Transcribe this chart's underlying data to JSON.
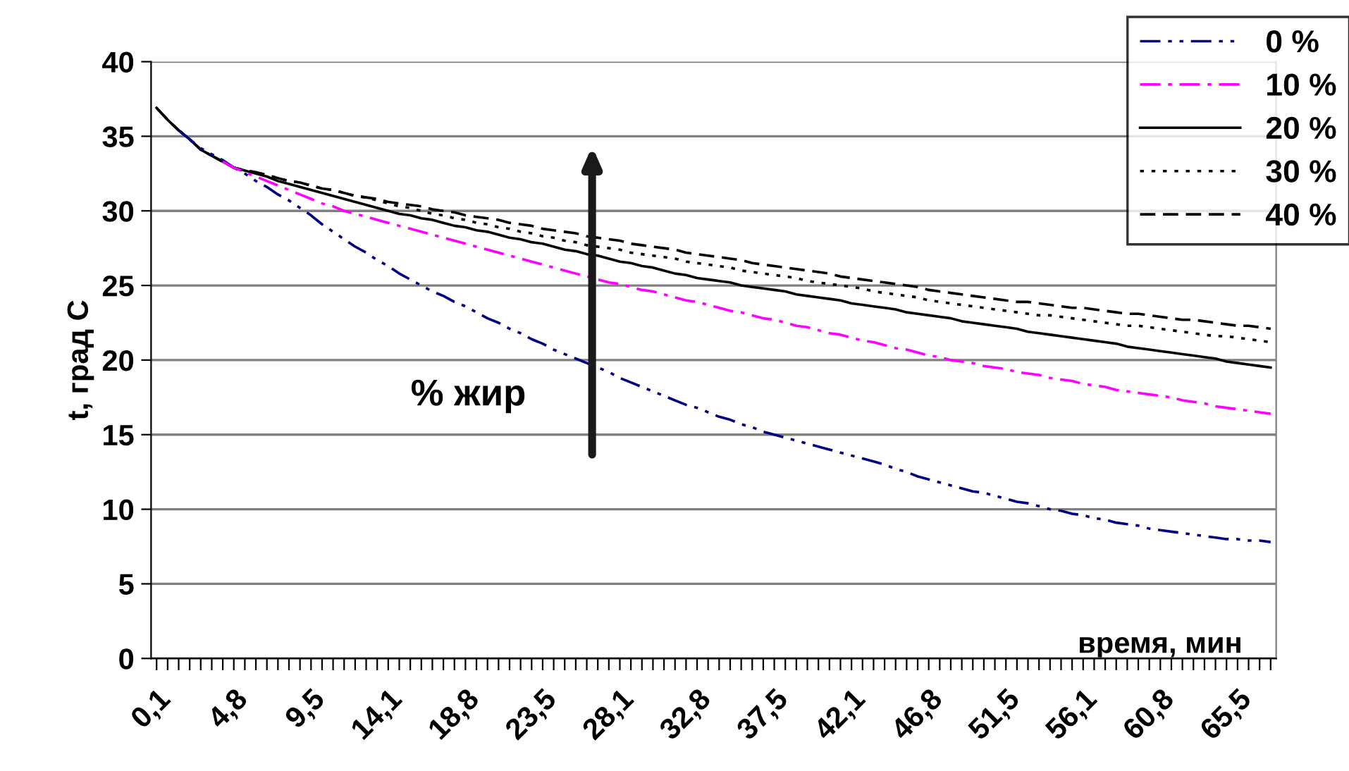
{
  "chart_data": {
    "type": "line",
    "ylabel": "t, град С",
    "xlabel": "время, мин",
    "annotations": [
      "% жир"
    ],
    "categories": [
      "0,1",
      null,
      null,
      null,
      null,
      null,
      null,
      "4,8",
      null,
      null,
      null,
      null,
      null,
      null,
      "9,5",
      null,
      null,
      null,
      null,
      null,
      null,
      "14,1",
      null,
      null,
      null,
      null,
      null,
      null,
      "18,8",
      null,
      null,
      null,
      null,
      null,
      null,
      "23,5",
      null,
      null,
      null,
      null,
      null,
      null,
      "28,1",
      null,
      null,
      null,
      null,
      null,
      null,
      "32,8",
      null,
      null,
      null,
      null,
      null,
      null,
      "37,5",
      null,
      null,
      null,
      null,
      null,
      null,
      "42,1",
      null,
      null,
      null,
      null,
      null,
      null,
      "46,8",
      null,
      null,
      null,
      null,
      null,
      null,
      "51,5",
      null,
      null,
      null,
      null,
      null,
      null,
      "56,1",
      null,
      null,
      null,
      null,
      null,
      null,
      "60,8",
      null,
      null,
      null,
      null,
      null,
      null,
      "65,5",
      null,
      null,
      null
    ],
    "ylim": [
      0,
      40
    ],
    "yticks": [
      0,
      5,
      10,
      15,
      20,
      25,
      30,
      35,
      40
    ],
    "grid": "y",
    "legend": "top right",
    "marker": "none",
    "series": [
      {
        "name": "0 %",
        "color": "#000080",
        "line_style": "dashdotdot",
        "values": [
          null,
          null,
          35.4,
          34.8,
          34.2,
          33.8,
          33.4,
          32.9,
          32.5,
          32.0,
          31.6,
          31.1,
          30.7,
          30.2,
          29.7,
          29.1,
          28.6,
          28.1,
          27.6,
          27.2,
          26.7,
          26.3,
          25.8,
          25.4,
          25.0,
          24.6,
          24.3,
          23.9,
          23.6,
          23.2,
          22.8,
          22.5,
          22.1,
          21.8,
          21.4,
          21.1,
          20.7,
          20.4,
          20.1,
          19.8,
          19.5,
          19.2,
          18.8,
          18.5,
          18.2,
          17.9,
          17.6,
          17.3,
          17.0,
          16.8,
          16.5,
          16.2,
          16.0,
          15.7,
          15.5,
          15.2,
          15.0,
          14.8,
          14.6,
          14.4,
          14.2,
          14.0,
          13.8,
          13.6,
          13.4,
          13.2,
          13.0,
          12.7,
          12.5,
          12.2,
          12.0,
          11.8,
          11.6,
          11.4,
          11.2,
          11.1,
          10.9,
          10.7,
          10.5,
          10.4,
          10.2,
          10.0,
          9.9,
          9.7,
          9.6,
          9.4,
          9.3,
          9.1,
          9.0,
          8.9,
          8.7,
          8.6,
          8.5,
          8.4,
          8.3,
          8.2,
          8.1,
          8.0,
          8.0,
          7.9,
          7.9,
          7.8
        ]
      },
      {
        "name": "10 %",
        "color": "#ff00ff",
        "line_style": "dashdot",
        "values": [
          null,
          null,
          null,
          null,
          null,
          null,
          33.3,
          32.9,
          32.6,
          32.3,
          32.0,
          31.7,
          31.4,
          31.1,
          30.8,
          30.5,
          30.3,
          30.0,
          29.8,
          29.6,
          29.4,
          29.2,
          29.0,
          28.8,
          28.6,
          28.4,
          28.2,
          28.0,
          27.8,
          27.6,
          27.4,
          27.2,
          27.0,
          26.8,
          26.6,
          26.4,
          26.2,
          26.0,
          25.8,
          25.6,
          25.4,
          25.2,
          25.1,
          24.9,
          24.7,
          24.6,
          24.4,
          24.2,
          24.0,
          23.9,
          23.7,
          23.5,
          23.3,
          23.2,
          23.0,
          22.8,
          22.7,
          22.5,
          22.3,
          22.2,
          22.0,
          21.8,
          21.7,
          21.5,
          21.3,
          21.2,
          21.0,
          20.8,
          20.7,
          20.5,
          20.3,
          20.2,
          20.0,
          19.9,
          19.8,
          19.6,
          19.5,
          19.4,
          19.2,
          19.1,
          19.0,
          18.8,
          18.7,
          18.6,
          18.4,
          18.3,
          18.2,
          18.0,
          17.9,
          17.8,
          17.7,
          17.6,
          17.5,
          17.3,
          17.2,
          17.1,
          16.9,
          16.8,
          16.7,
          16.6,
          16.5,
          16.4
        ]
      },
      {
        "name": "20 %",
        "color": "#000000",
        "line_style": "solid",
        "values": [
          36.9,
          36.1,
          35.4,
          34.8,
          34.1,
          33.7,
          33.3,
          32.9,
          32.7,
          32.5,
          32.3,
          32.0,
          31.8,
          31.6,
          31.4,
          31.2,
          31.0,
          30.8,
          30.6,
          30.4,
          30.2,
          30.0,
          29.8,
          29.7,
          29.5,
          29.4,
          29.2,
          29.0,
          28.9,
          28.7,
          28.6,
          28.4,
          28.2,
          28.1,
          27.9,
          27.8,
          27.6,
          27.4,
          27.3,
          27.1,
          27.0,
          26.8,
          26.6,
          26.5,
          26.3,
          26.2,
          26.0,
          25.8,
          25.7,
          25.5,
          25.4,
          25.3,
          25.2,
          25.0,
          24.9,
          24.8,
          24.7,
          24.6,
          24.4,
          24.3,
          24.2,
          24.1,
          24.0,
          23.8,
          23.7,
          23.6,
          23.5,
          23.4,
          23.2,
          23.1,
          23.0,
          22.9,
          22.8,
          22.6,
          22.5,
          22.4,
          22.3,
          22.2,
          22.1,
          21.9,
          21.8,
          21.7,
          21.6,
          21.5,
          21.4,
          21.3,
          21.2,
          21.1,
          20.9,
          20.8,
          20.7,
          20.6,
          20.5,
          20.4,
          20.3,
          20.2,
          20.1,
          19.9,
          19.8,
          19.7,
          19.6,
          19.5
        ]
      },
      {
        "name": "30 %",
        "color": "#000000",
        "line_style": "dotted",
        "values": [
          36.9,
          36.1,
          35.4,
          34.8,
          34.1,
          33.7,
          33.3,
          32.9,
          32.7,
          32.6,
          32.4,
          32.2,
          32.0,
          31.9,
          31.7,
          31.5,
          31.4,
          31.2,
          31.0,
          30.9,
          30.7,
          30.5,
          30.3,
          30.2,
          30.0,
          29.8,
          29.7,
          29.5,
          29.4,
          29.2,
          29.1,
          28.9,
          28.8,
          28.6,
          28.5,
          28.3,
          28.2,
          28.0,
          27.9,
          27.7,
          27.6,
          27.5,
          27.4,
          27.2,
          27.1,
          27.0,
          26.9,
          26.8,
          26.6,
          26.5,
          26.4,
          26.3,
          26.2,
          26.0,
          25.9,
          25.8,
          25.7,
          25.6,
          25.5,
          25.3,
          25.2,
          25.1,
          25.0,
          24.9,
          24.8,
          24.6,
          24.5,
          24.4,
          24.3,
          24.2,
          24.0,
          23.9,
          23.8,
          23.7,
          23.6,
          23.5,
          23.4,
          23.3,
          23.2,
          23.1,
          23.0,
          23.0,
          22.9,
          22.8,
          22.7,
          22.6,
          22.5,
          22.4,
          22.3,
          22.3,
          22.2,
          22.1,
          22.0,
          21.9,
          21.8,
          21.7,
          21.6,
          21.6,
          21.5,
          21.4,
          21.3,
          21.2
        ]
      },
      {
        "name": "40 %",
        "color": "#000000",
        "line_style": "dashed",
        "values": [
          36.9,
          36.1,
          35.4,
          34.8,
          34.1,
          33.7,
          33.3,
          32.9,
          32.7,
          32.6,
          32.4,
          32.2,
          32.0,
          31.9,
          31.7,
          31.5,
          31.4,
          31.2,
          31.0,
          30.9,
          30.8,
          30.6,
          30.5,
          30.4,
          30.3,
          30.1,
          30.0,
          29.9,
          29.7,
          29.6,
          29.5,
          29.4,
          29.2,
          29.1,
          29.0,
          28.8,
          28.7,
          28.6,
          28.5,
          28.3,
          28.2,
          28.1,
          28.0,
          27.8,
          27.7,
          27.6,
          27.5,
          27.4,
          27.2,
          27.1,
          27.0,
          26.9,
          26.8,
          26.7,
          26.5,
          26.4,
          26.3,
          26.2,
          26.1,
          26.0,
          25.9,
          25.8,
          25.6,
          25.5,
          25.4,
          25.3,
          25.2,
          25.1,
          25.0,
          24.9,
          24.7,
          24.6,
          24.5,
          24.4,
          24.3,
          24.2,
          24.1,
          24.0,
          23.9,
          23.9,
          23.8,
          23.7,
          23.6,
          23.5,
          23.5,
          23.4,
          23.3,
          23.2,
          23.1,
          23.1,
          23.0,
          22.9,
          22.8,
          22.7,
          22.7,
          22.6,
          22.5,
          22.4,
          22.3,
          22.3,
          22.2,
          22.1
        ]
      }
    ]
  }
}
